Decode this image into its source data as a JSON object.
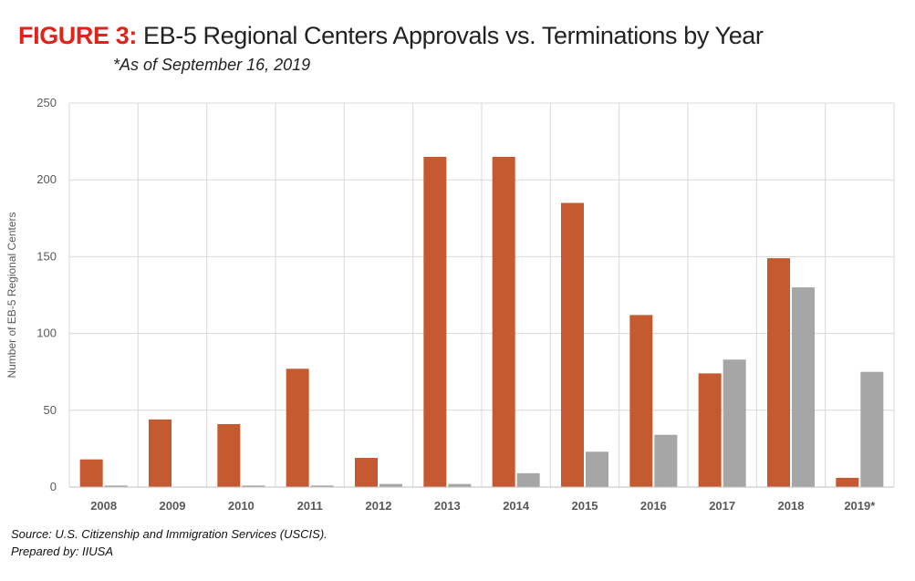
{
  "header": {
    "title_prefix": "FIGURE 3:",
    "title_text": "EB-5 Regional Centers Approvals vs. Terminations by Year",
    "subtitle": "*As of September 16, 2019"
  },
  "footer": {
    "source": "Source: U.S. Citizenship and Immigration Services (USCIS).",
    "prepared_by": "Prepared by: IIUSA"
  },
  "colors": {
    "approvals": "#c55a30",
    "terminations": "#a6a6a6",
    "grid": "#d9d9d9"
  },
  "chart_data": {
    "type": "bar",
    "title": "EB-5 Regional Centers Approvals vs. Terminations by Year",
    "subtitle": "*As of September 16, 2019",
    "ylabel": "Number of EB-5 Regional Centers",
    "categories": [
      "2008",
      "2009",
      "2010",
      "2011",
      "2012",
      "2013",
      "2014",
      "2015",
      "2016",
      "2017",
      "2018",
      "2019*"
    ],
    "series": [
      {
        "values": [
          18,
          44,
          41,
          77,
          19,
          215,
          215,
          185,
          112,
          74,
          149,
          6
        ]
      },
      {
        "values": [
          1,
          0,
          1,
          1,
          2,
          2,
          9,
          23,
          34,
          83,
          130,
          75
        ]
      }
    ],
    "ylim": [
      0,
      250
    ],
    "yticks": [
      0,
      50,
      100,
      150,
      200,
      250
    ],
    "grid": true,
    "legend": "none"
  }
}
